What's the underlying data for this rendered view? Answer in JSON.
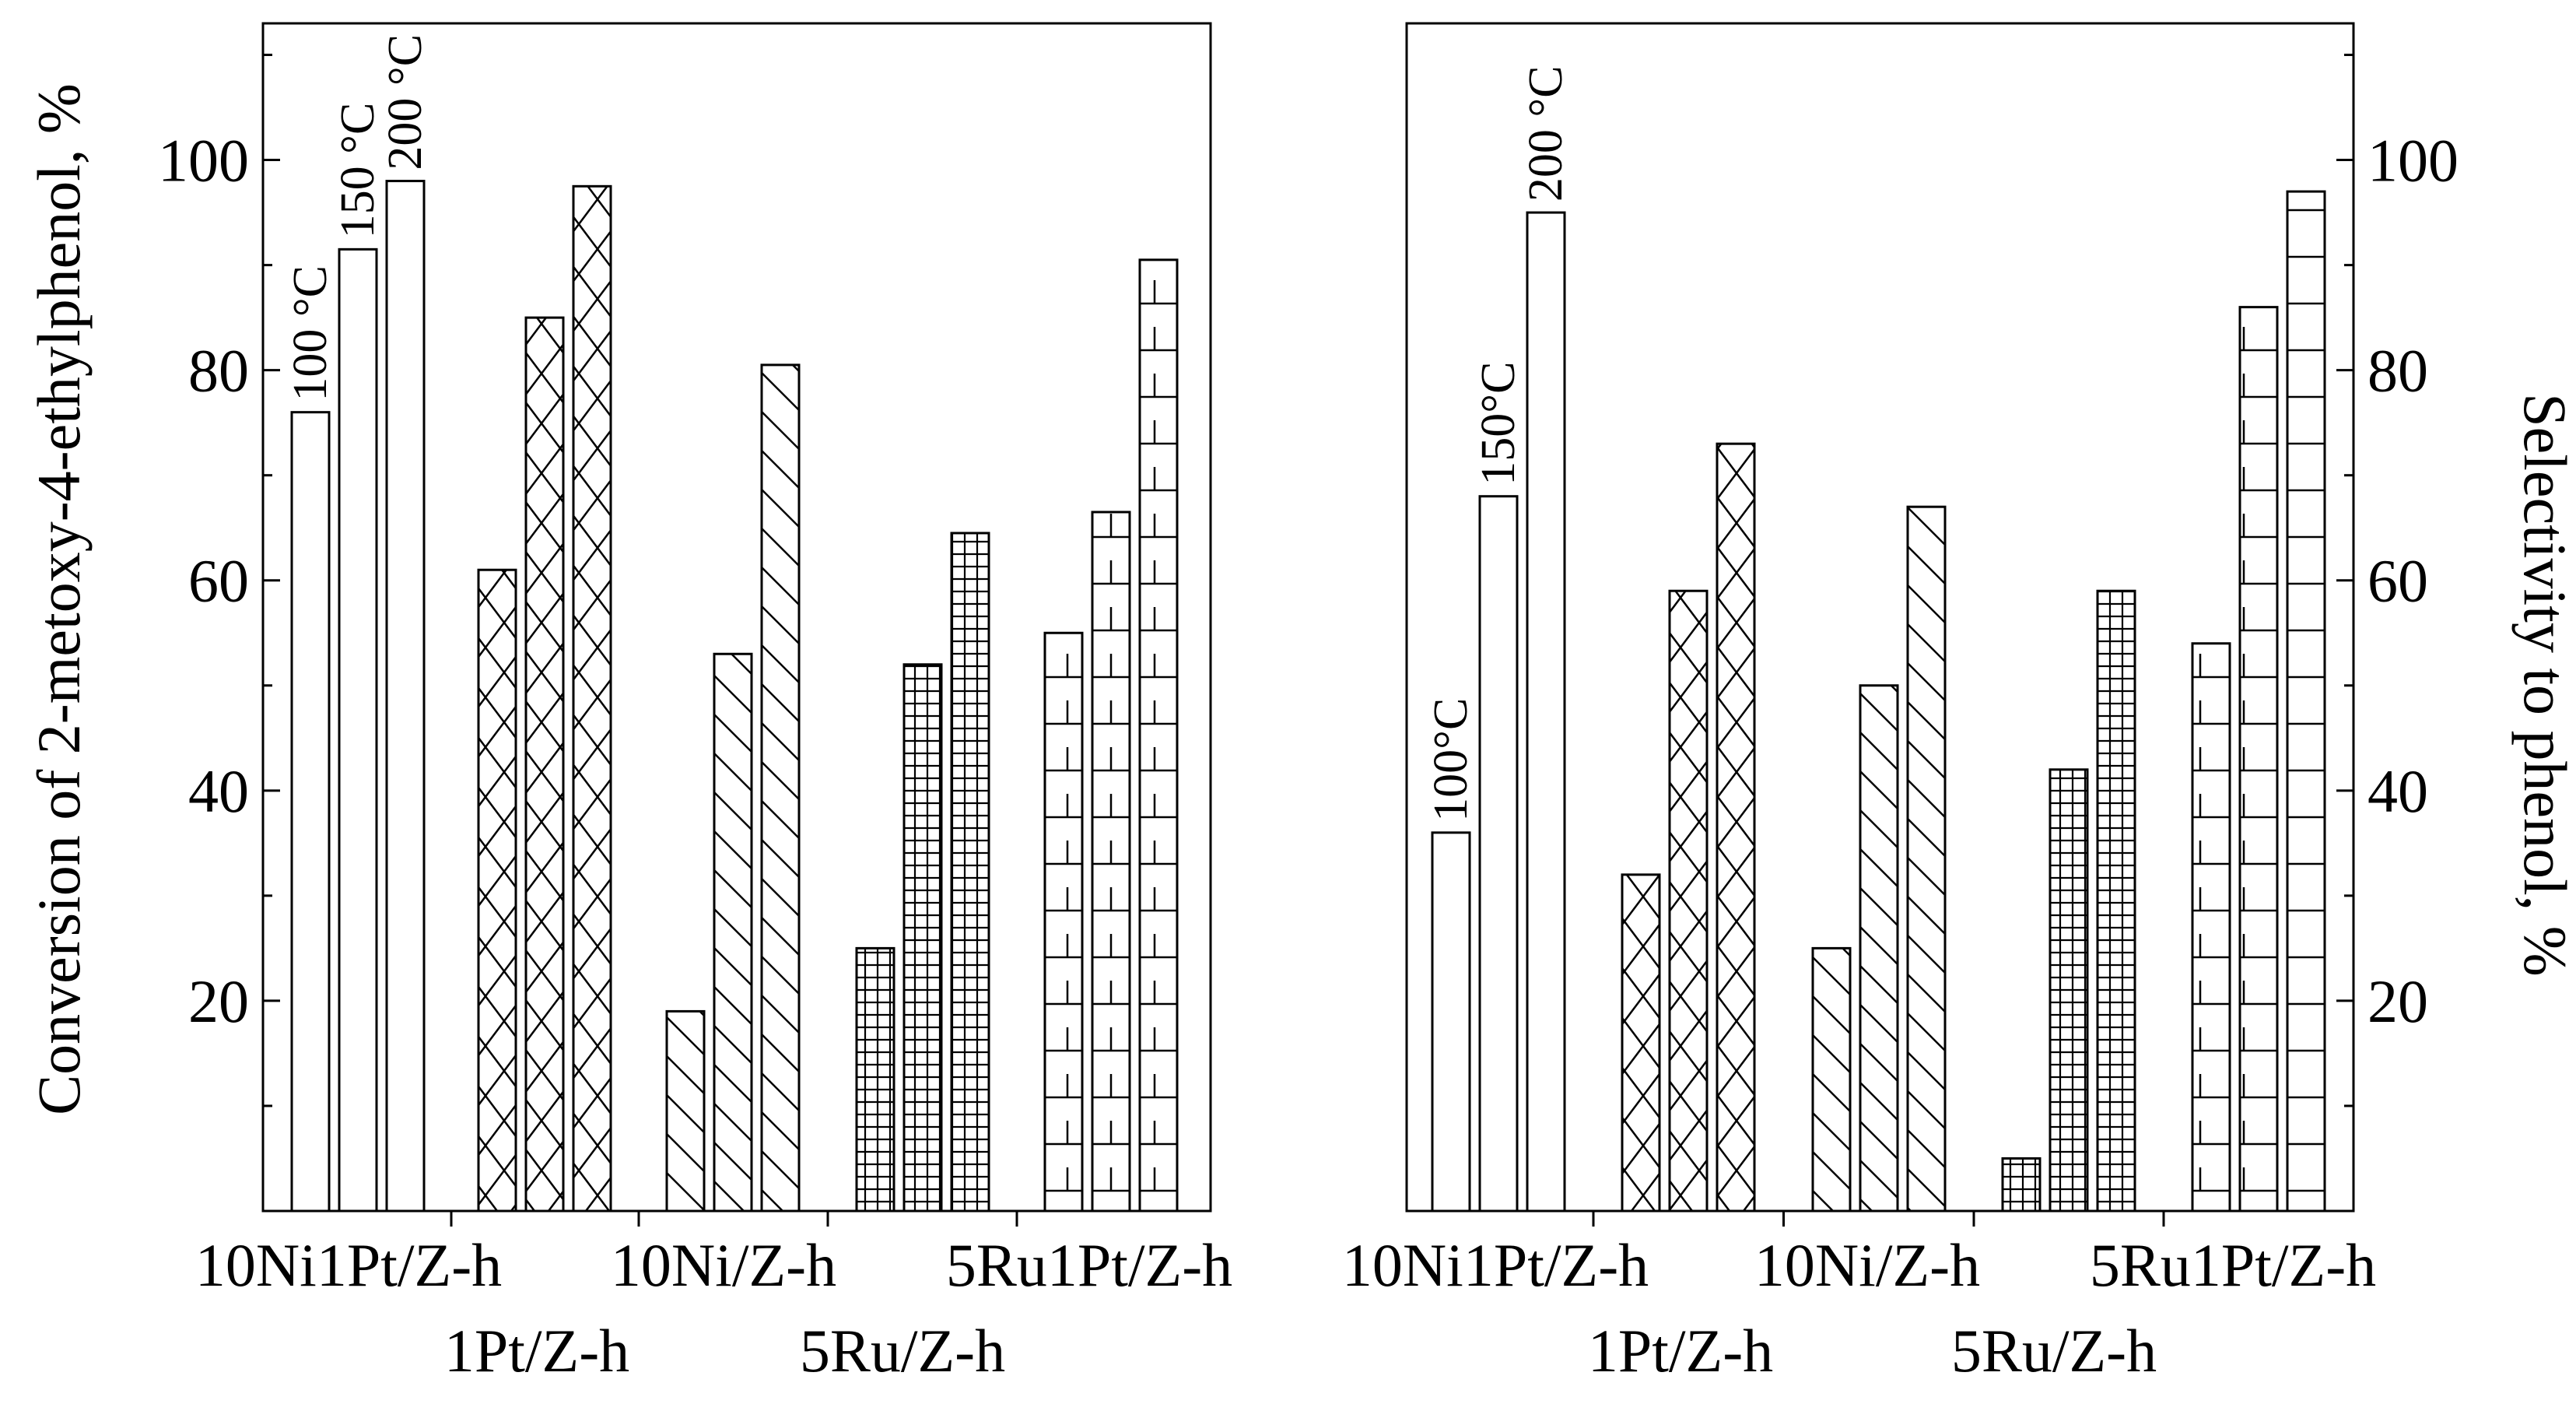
{
  "chart_data": [
    {
      "type": "bar",
      "title": "",
      "xlabel": "",
      "ylabel": "Conversion of 2-metoxy-4-ethylphenol, %",
      "ylim": [
        0,
        113
      ],
      "yticks": [
        20,
        40,
        60,
        80,
        100
      ],
      "grid": false,
      "categories": [
        "10Ni1Pt/Z-h",
        "1Pt/Z-h",
        "10Ni/Z-h",
        "5Ru/Z-h",
        "5Ru1Pt/Z-h"
      ],
      "series": [
        {
          "name": "100 °C",
          "values": [
            76,
            61,
            19,
            25,
            55
          ]
        },
        {
          "name": "150 °C",
          "values": [
            91.5,
            85,
            53,
            52,
            66.5
          ]
        },
        {
          "name": "200 °C",
          "values": [
            98,
            97.5,
            80.5,
            64.5,
            90.5
          ]
        }
      ],
      "patterns": [
        "none",
        "crosshatch-diamond",
        "diagonal",
        "grid-fine",
        "horizontal-lines"
      ],
      "annotations": [
        "100 °C",
        "150 °C",
        "200 °C"
      ]
    },
    {
      "type": "bar",
      "title": "",
      "xlabel": "",
      "ylabel": "Selectivity to phenol, %",
      "ylim": [
        0,
        113
      ],
      "yticks": [
        20,
        40,
        60,
        80,
        100
      ],
      "grid": false,
      "categories": [
        "10Ni1Pt/Z-h",
        "1Pt/Z-h",
        "10Ni/Z-h",
        "5Ru/Z-h",
        "5Ru1Pt/Z-h"
      ],
      "series": [
        {
          "name": "100°C",
          "values": [
            36,
            32,
            25,
            5,
            54
          ]
        },
        {
          "name": "150°C",
          "values": [
            68,
            59,
            50,
            42,
            86
          ]
        },
        {
          "name": "200 °C",
          "values": [
            95,
            73,
            67,
            59,
            97
          ]
        }
      ],
      "patterns": [
        "none",
        "crosshatch-diamond",
        "diagonal",
        "grid-fine",
        "horizontal-lines"
      ],
      "annotations": [
        "100°C",
        "150°C",
        "200 °C"
      ]
    }
  ]
}
